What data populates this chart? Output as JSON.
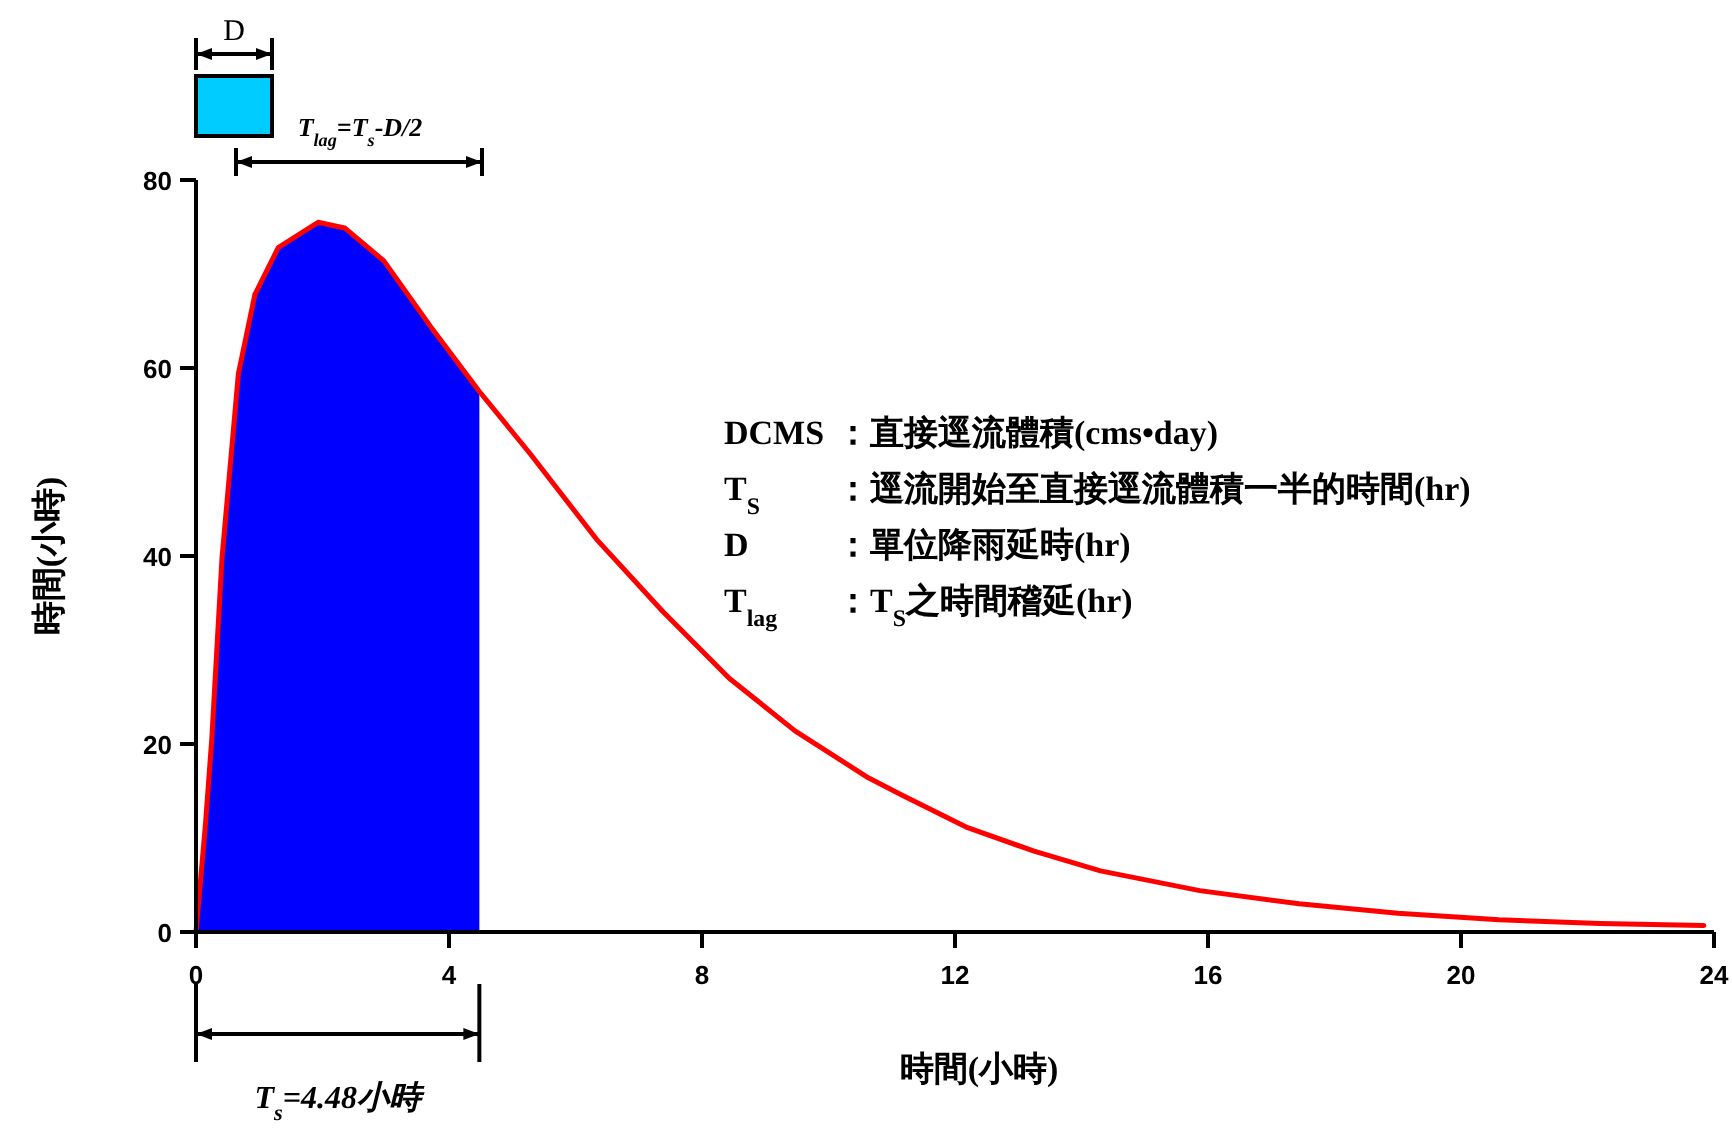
{
  "chart_data": {
    "type": "line",
    "xlabel": "時間(小時)",
    "ylabel": "時間(小時)",
    "xlim": [
      0,
      24
    ],
    "ylim": [
      0,
      80
    ],
    "xticks": [
      0,
      4,
      8,
      12,
      16,
      20,
      24
    ],
    "yticks": [
      0,
      20,
      40,
      60,
      80
    ],
    "series": [
      {
        "type": "area",
        "color": "#0000ff",
        "x": [
          0,
          0.15,
          0.25,
          0.41,
          0.67,
          0.93,
          1.3,
          1.93,
          2.35,
          2.97,
          3.71,
          4.48
        ],
        "values": [
          0,
          11.5,
          20.6,
          39.7,
          59.4,
          67.8,
          72.8,
          75.5,
          74.9,
          71.4,
          64.4,
          57.5
        ]
      },
      {
        "type": "line",
        "color": "#ff0000",
        "x": [
          0,
          0.15,
          0.25,
          0.41,
          0.67,
          0.93,
          1.3,
          1.93,
          2.35,
          2.97,
          3.71,
          4.48,
          5.28,
          6.33,
          7.38,
          8.43,
          9.47,
          10.63,
          11.15,
          12.2,
          13.25,
          14.3,
          15.87,
          17.44,
          19.0,
          20.6,
          22.2,
          23.84
        ],
        "values": [
          0,
          11.5,
          20.6,
          39.7,
          59.4,
          67.8,
          72.8,
          75.5,
          74.9,
          71.4,
          64.4,
          57.5,
          50.9,
          41.8,
          34.1,
          27.0,
          21.4,
          16.4,
          14.6,
          11.1,
          8.6,
          6.5,
          4.4,
          3.0,
          2.0,
          1.3,
          0.9,
          0.7
        ]
      }
    ],
    "annotations": [
      "D",
      "T$_{lag}$=T$_{s}$-D/2",
      "DCMS",
      "：直接逕流體積(cms•day)",
      "T$_{S}$",
      "：逕流開始至直接逕流體積一半的時間(hr)",
      "D",
      "：單位降雨延時(hr)",
      "T$_{lag}$",
      "：T$_{S}$之時間稽延(hr)",
      "T$_{s}$=4.48小時"
    ]
  }
}
